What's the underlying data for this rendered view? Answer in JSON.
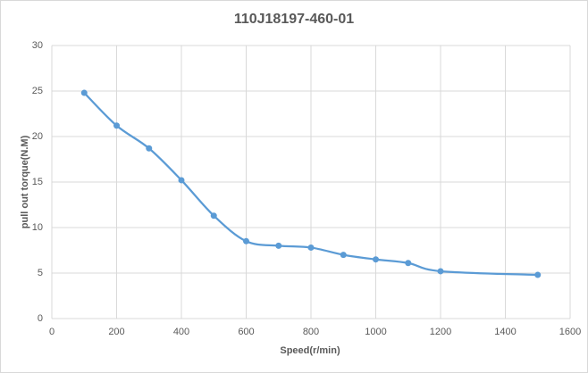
{
  "chart_data": {
    "type": "line",
    "title": "110J18197-460-01",
    "x_label": "Speed(r/min)",
    "y_label": "pull out torque(N.M)",
    "x": [
      100,
      200,
      300,
      400,
      500,
      600,
      700,
      800,
      900,
      1000,
      1100,
      1200,
      1500
    ],
    "series": [
      {
        "name": "pull out torque",
        "color": "#5b9bd5",
        "values": [
          24.8,
          21.2,
          18.7,
          15.2,
          11.3,
          8.5,
          8.0,
          7.8,
          7.0,
          6.5,
          6.1,
          5.2,
          4.8
        ]
      }
    ],
    "xlim": [
      0,
      1600
    ],
    "xticks": [
      0,
      200,
      400,
      600,
      800,
      1000,
      1200,
      1400,
      1600
    ],
    "ylim": [
      0,
      30
    ],
    "yticks": [
      0,
      5,
      10,
      15,
      20,
      25,
      30
    ],
    "grid": true,
    "smooth": true
  }
}
